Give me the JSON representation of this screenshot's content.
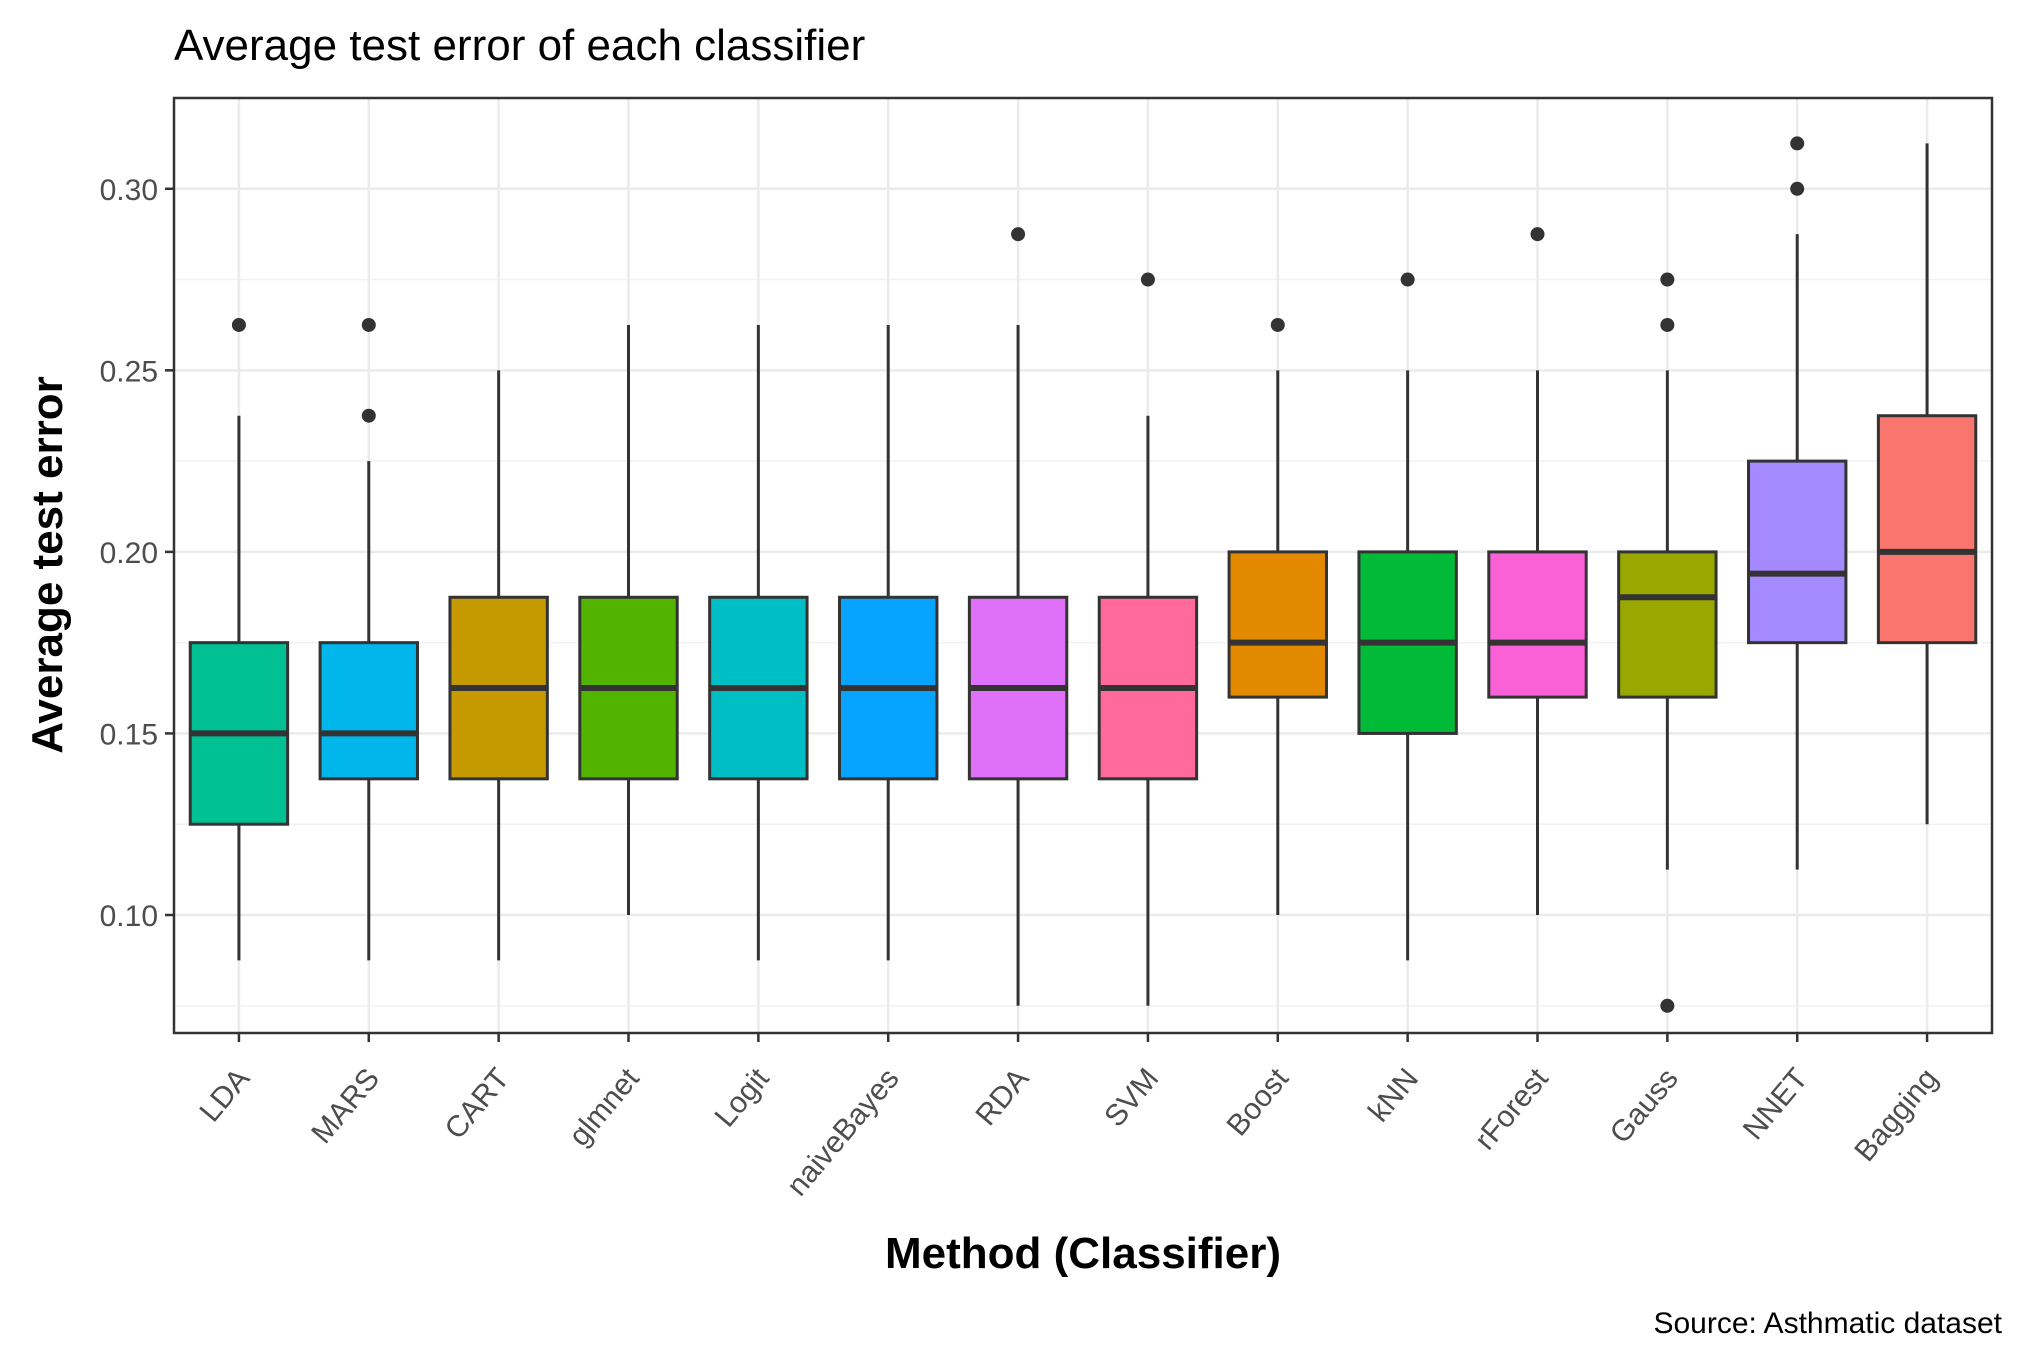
{
  "chart_data": {
    "type": "boxplot",
    "title": "Average test error of each classifier",
    "xlabel": "Method (Classifier)",
    "ylabel": "Average test error",
    "caption": "Source: Asthmatic dataset",
    "ylim": [
      0.0675,
      0.325
    ],
    "yticks": [
      0.1,
      0.15,
      0.2,
      0.25,
      0.3
    ],
    "ytick_labels": [
      "0.10",
      "0.15",
      "0.20",
      "0.25",
      "0.30"
    ],
    "grid": true,
    "categories": [
      "LDA",
      "MARS",
      "CART",
      "glmnet",
      "Logit",
      "naiveBayes",
      "RDA",
      "SVM",
      "Boost",
      "kNN",
      "rForest",
      "Gauss",
      "NNET",
      "Bagging"
    ],
    "boxes": [
      {
        "name": "LDA",
        "lower_whisker": 0.0875,
        "q1": 0.125,
        "median": 0.15,
        "q3": 0.175,
        "upper_whisker": 0.2375,
        "outliers": [
          0.2625
        ],
        "color": "#00C094"
      },
      {
        "name": "MARS",
        "lower_whisker": 0.0875,
        "q1": 0.1375,
        "median": 0.15,
        "q3": 0.175,
        "upper_whisker": 0.225,
        "outliers": [
          0.2375,
          0.2625
        ],
        "color": "#00B6EB"
      },
      {
        "name": "CART",
        "lower_whisker": 0.0875,
        "q1": 0.1375,
        "median": 0.1625,
        "q3": 0.1875,
        "upper_whisker": 0.25,
        "outliers": [],
        "color": "#C49A00"
      },
      {
        "name": "glmnet",
        "lower_whisker": 0.1,
        "q1": 0.1375,
        "median": 0.1625,
        "q3": 0.1875,
        "upper_whisker": 0.2625,
        "outliers": [],
        "color": "#53B400"
      },
      {
        "name": "Logit",
        "lower_whisker": 0.0875,
        "q1": 0.1375,
        "median": 0.1625,
        "q3": 0.1875,
        "upper_whisker": 0.2625,
        "outliers": [],
        "color": "#00BFC4"
      },
      {
        "name": "naiveBayes",
        "lower_whisker": 0.0875,
        "q1": 0.1375,
        "median": 0.1625,
        "q3": 0.1875,
        "upper_whisker": 0.2625,
        "outliers": [],
        "color": "#06A4FF"
      },
      {
        "name": "RDA",
        "lower_whisker": 0.075,
        "q1": 0.1375,
        "median": 0.1625,
        "q3": 0.1875,
        "upper_whisker": 0.2625,
        "outliers": [
          0.2875
        ],
        "color": "#DF70F8"
      },
      {
        "name": "SVM",
        "lower_whisker": 0.075,
        "q1": 0.1375,
        "median": 0.1625,
        "q3": 0.1875,
        "upper_whisker": 0.2375,
        "outliers": [
          0.275
        ],
        "color": "#FF699C"
      },
      {
        "name": "Boost",
        "lower_whisker": 0.1,
        "q1": 0.16,
        "median": 0.175,
        "q3": 0.2,
        "upper_whisker": 0.25,
        "outliers": [
          0.2625
        ],
        "color": "#E38900"
      },
      {
        "name": "kNN",
        "lower_whisker": 0.0875,
        "q1": 0.15,
        "median": 0.175,
        "q3": 0.2,
        "upper_whisker": 0.25,
        "outliers": [
          0.275
        ],
        "color": "#00BA38"
      },
      {
        "name": "rForest",
        "lower_whisker": 0.1,
        "q1": 0.16,
        "median": 0.175,
        "q3": 0.2,
        "upper_whisker": 0.25,
        "outliers": [
          0.2875
        ],
        "color": "#FB61D7"
      },
      {
        "name": "Gauss",
        "lower_whisker": 0.1125,
        "q1": 0.16,
        "median": 0.1875,
        "q3": 0.2,
        "upper_whisker": 0.25,
        "outliers": [
          0.2625,
          0.275,
          0.075
        ],
        "color": "#99A800"
      },
      {
        "name": "NNET",
        "lower_whisker": 0.1125,
        "q1": 0.175,
        "median": 0.194,
        "q3": 0.225,
        "upper_whisker": 0.2875,
        "outliers": [
          0.3,
          0.3125
        ],
        "color": "#A58AFF"
      },
      {
        "name": "Bagging",
        "lower_whisker": 0.125,
        "q1": 0.175,
        "median": 0.2,
        "q3": 0.2375,
        "upper_whisker": 0.3125,
        "outliers": [],
        "color": "#F8766D"
      }
    ]
  }
}
